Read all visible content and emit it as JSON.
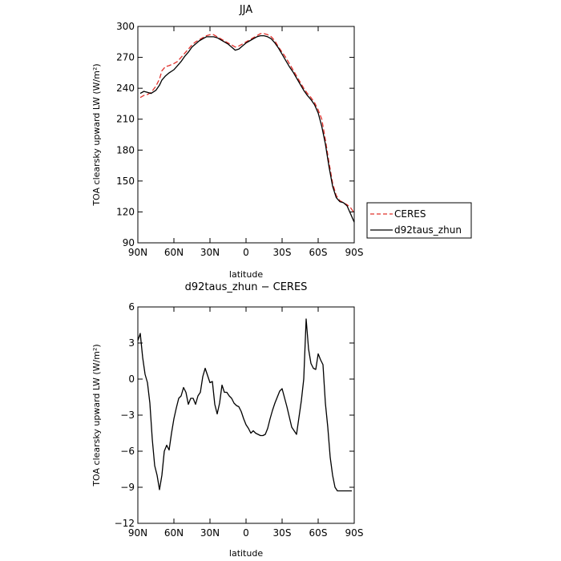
{
  "chart_data": [
    {
      "type": "line",
      "title": "JJA",
      "xlabel": "latitude",
      "ylabel": "TOA clearsky upward LW (W/m²)",
      "xlim": [
        90,
        -90
      ],
      "ylim": [
        90,
        300
      ],
      "x_ticks": [
        90,
        60,
        30,
        0,
        -30,
        -60,
        -90
      ],
      "x_tick_labels": [
        "90N",
        "60N",
        "30N",
        "0",
        "30S",
        "60S",
        "90S"
      ],
      "y_ticks": [
        90,
        120,
        150,
        180,
        210,
        240,
        270,
        300
      ],
      "y_tick_labels": [
        "90",
        "120",
        "150",
        "180",
        "210",
        "240",
        "270",
        "300"
      ],
      "grid": false,
      "legend_position": "right",
      "legend": [
        "CERES",
        "d92taus_zhun"
      ],
      "series": [
        {
          "name": "CERES",
          "color": "#e0302b",
          "dash": "dashed",
          "x": [
            88,
            85,
            82,
            79,
            75,
            72,
            70,
            67,
            64,
            60,
            57,
            54,
            51,
            48,
            45,
            42,
            39,
            36,
            33,
            30,
            27,
            24,
            21,
            18,
            15,
            12,
            9,
            6,
            3,
            0,
            -3,
            -6,
            -9,
            -12,
            -15,
            -18,
            -21,
            -24,
            -27,
            -30,
            -33,
            -36,
            -39,
            -42,
            -45,
            -48,
            -51,
            -54,
            -57,
            -60,
            -63,
            -66,
            -69,
            -72,
            -75,
            -78,
            -81,
            -84,
            -87,
            -90
          ],
          "y": [
            231,
            233,
            234,
            236,
            242,
            249,
            257,
            261,
            262,
            264,
            266,
            270,
            274,
            278,
            282,
            285,
            287,
            289,
            291,
            292,
            292,
            290,
            288,
            286,
            284,
            282,
            280,
            281,
            283,
            285,
            287,
            289,
            291,
            293,
            293,
            292,
            290,
            286,
            280,
            275,
            270,
            264,
            258,
            252,
            246,
            240,
            235,
            231,
            226,
            219,
            210,
            190,
            168,
            148,
            136,
            131,
            129,
            127,
            124,
            119
          ]
        },
        {
          "name": "d92taus_zhun",
          "color": "#000000",
          "dash": "solid",
          "x": [
            88,
            85,
            82,
            79,
            75,
            72,
            70,
            67,
            64,
            60,
            57,
            54,
            51,
            48,
            45,
            42,
            39,
            36,
            33,
            30,
            27,
            24,
            21,
            18,
            15,
            12,
            9,
            6,
            3,
            0,
            -3,
            -6,
            -9,
            -12,
            -15,
            -18,
            -21,
            -24,
            -27,
            -30,
            -33,
            -36,
            -39,
            -42,
            -45,
            -48,
            -51,
            -54,
            -57,
            -60,
            -63,
            -66,
            -69,
            -72,
            -75,
            -78,
            -81,
            -84,
            -87,
            -90
          ],
          "y": [
            235,
            237,
            236,
            235,
            238,
            243,
            248,
            252,
            255,
            258,
            262,
            266,
            271,
            275,
            280,
            283,
            286,
            288,
            290,
            290,
            290,
            289,
            287,
            285,
            283,
            280,
            277,
            278,
            281,
            284,
            286,
            288,
            290,
            291,
            291,
            290,
            288,
            284,
            279,
            273,
            267,
            261,
            256,
            250,
            244,
            238,
            233,
            229,
            224,
            216,
            203,
            186,
            164,
            145,
            134,
            130,
            129,
            126,
            118,
            110
          ]
        }
      ]
    },
    {
      "type": "line",
      "title": "d92taus_zhun − CERES",
      "xlabel": "latitude",
      "ylabel": "TOA clearsky upward LW (W/m²)",
      "xlim": [
        90,
        -90
      ],
      "ylim": [
        -12,
        6
      ],
      "x_ticks": [
        90,
        60,
        30,
        0,
        -30,
        -60,
        -90
      ],
      "x_tick_labels": [
        "90N",
        "60N",
        "30N",
        "0",
        "30S",
        "60S",
        "90S"
      ],
      "y_ticks": [
        -12,
        -9,
        -6,
        -3,
        0,
        3,
        6
      ],
      "y_tick_labels": [
        "−12",
        "−9",
        "−6",
        "−3",
        "0",
        "3",
        "6"
      ],
      "grid": false,
      "series": [
        {
          "color": "#000000",
          "dash": "solid",
          "x": [
            90,
            88,
            86,
            84,
            82,
            80,
            78,
            76,
            74,
            72,
            70,
            68,
            66,
            64,
            62,
            60,
            58,
            56,
            54,
            52,
            50,
            48,
            46,
            44,
            42,
            40,
            38,
            36,
            34,
            32,
            30,
            28,
            26,
            24,
            22,
            20,
            18,
            16,
            14,
            12,
            10,
            8,
            6,
            4,
            2,
            0,
            -2,
            -4,
            -6,
            -8,
            -10,
            -12,
            -14,
            -16,
            -18,
            -20,
            -22,
            -24,
            -26,
            -28,
            -30,
            -34,
            -38,
            -42,
            -46,
            -48,
            -50,
            -52,
            -54,
            -56,
            -58,
            -60,
            -62,
            -64,
            -66,
            -68,
            -70,
            -72,
            -74,
            -76,
            -78,
            -80,
            -82,
            -84,
            -86,
            -88
          ],
          "y": [
            3.2,
            3.8,
            1.8,
            0.4,
            -0.3,
            -2.0,
            -5.0,
            -7.2,
            -8.0,
            -9.2,
            -8.0,
            -6.0,
            -5.5,
            -5.9,
            -4.5,
            -3.3,
            -2.4,
            -1.6,
            -1.4,
            -0.7,
            -1.1,
            -2.1,
            -1.6,
            -1.6,
            -2.1,
            -1.4,
            -1.1,
            0.2,
            0.9,
            0.3,
            -0.3,
            -0.2,
            -2.1,
            -2.9,
            -2.0,
            -0.5,
            -1.1,
            -1.1,
            -1.4,
            -1.6,
            -2.0,
            -2.2,
            -2.3,
            -2.7,
            -3.3,
            -3.8,
            -4.1,
            -4.5,
            -4.3,
            -4.5,
            -4.6,
            -4.7,
            -4.7,
            -4.6,
            -4.1,
            -3.3,
            -2.6,
            -2.0,
            -1.5,
            -1.0,
            -0.8,
            -2.3,
            -4.0,
            -4.6,
            -1.8,
            0.0,
            5.0,
            2.5,
            1.3,
            0.9,
            0.8,
            2.1,
            1.6,
            1.2,
            -2.0,
            -4.0,
            -6.5,
            -8.0,
            -9.0,
            -9.3,
            -9.3,
            -9.3,
            -9.3,
            -9.3,
            -9.3,
            -9.3
          ]
        }
      ]
    }
  ]
}
